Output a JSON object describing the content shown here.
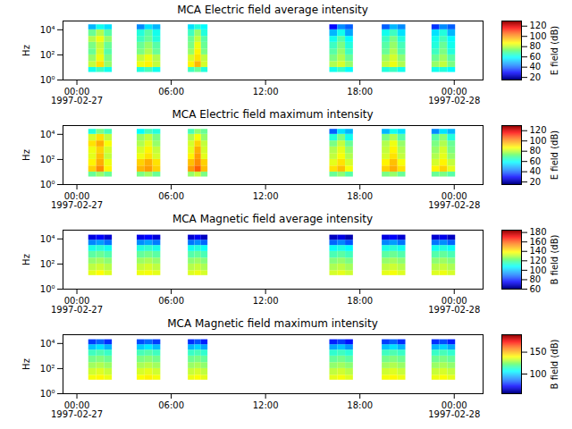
{
  "chart_data": [
    {
      "type": "heatmap",
      "title": "MCA  Electric field average intensity",
      "ylabel": "Hz",
      "log": "y",
      "xlim": [
        "1997-02-26T23:07",
        "1997-02-28T01:50"
      ],
      "xticks": [
        {
          "value": "1997-02-27T00:00",
          "label": "00:00\n1997-02-27"
        },
        {
          "value": "1997-02-27T06:00",
          "label": "06:00"
        },
        {
          "value": "1997-02-27T12:00",
          "label": "12:00"
        },
        {
          "value": "1997-02-27T18:00",
          "label": "18:00"
        },
        {
          "value": "1997-02-28T00:00",
          "label": "00:00\n1997-02-28"
        }
      ],
      "ylim": [
        1,
        50000
      ],
      "yticks": [
        {
          "value": 1,
          "label": "10⁰"
        },
        {
          "value": 100,
          "label": "10²"
        },
        {
          "value": 10000,
          "label": "10⁴"
        }
      ],
      "time_bins": [
        [
          "1997-02-27T00:45",
          "1997-02-27T01:15"
        ],
        [
          "1997-02-27T01:15",
          "1997-02-27T01:45"
        ],
        [
          "1997-02-27T01:45",
          "1997-02-27T02:15"
        ],
        [
          "1997-02-27T03:50",
          "1997-02-27T04:20"
        ],
        [
          "1997-02-27T04:20",
          "1997-02-27T04:50"
        ],
        [
          "1997-02-27T04:50",
          "1997-02-27T05:20"
        ],
        [
          "1997-02-27T07:05",
          "1997-02-27T07:30"
        ],
        [
          "1997-02-27T07:30",
          "1997-02-27T07:55"
        ],
        [
          "1997-02-27T07:55",
          "1997-02-27T08:20"
        ],
        [
          "1997-02-27T16:05",
          "1997-02-27T16:35"
        ],
        [
          "1997-02-27T16:35",
          "1997-02-27T17:05"
        ],
        [
          "1997-02-27T17:05",
          "1997-02-27T17:35"
        ],
        [
          "1997-02-27T19:25",
          "1997-02-27T19:55"
        ],
        [
          "1997-02-27T19:55",
          "1997-02-27T20:25"
        ],
        [
          "1997-02-27T20:25",
          "1997-02-27T20:55"
        ],
        [
          "1997-02-27T22:35",
          "1997-02-27T23:05"
        ],
        [
          "1997-02-27T23:05",
          "1997-02-27T23:35"
        ],
        [
          "1997-02-27T23:35",
          "1997-02-28T00:05"
        ]
      ],
      "freq_bins": [
        4,
        10,
        30,
        100,
        300,
        1000,
        3000,
        10000,
        25000
      ],
      "z": [
        [
          60,
          65,
          60,
          62,
          66,
          60,
          65,
          70,
          62,
          60,
          64,
          58,
          62,
          65,
          60,
          60,
          62,
          58
        ],
        [
          80,
          90,
          75,
          85,
          88,
          80,
          88,
          95,
          82,
          78,
          82,
          75,
          80,
          85,
          78,
          75,
          80,
          72
        ],
        [
          75,
          85,
          72,
          80,
          85,
          78,
          82,
          90,
          80,
          72,
          78,
          70,
          76,
          82,
          74,
          70,
          76,
          68
        ],
        [
          70,
          82,
          68,
          72,
          78,
          70,
          75,
          88,
          72,
          68,
          75,
          65,
          70,
          78,
          68,
          65,
          72,
          62
        ],
        [
          72,
          80,
          70,
          70,
          75,
          68,
          72,
          85,
          70,
          65,
          72,
          62,
          68,
          75,
          66,
          62,
          70,
          60
        ],
        [
          78,
          85,
          75,
          65,
          70,
          62,
          70,
          80,
          68,
          60,
          68,
          58,
          65,
          72,
          62,
          60,
          66,
          58
        ],
        [
          70,
          78,
          68,
          62,
          68,
          60,
          65,
          75,
          62,
          50,
          60,
          48,
          60,
          65,
          55,
          55,
          62,
          50
        ],
        [
          50,
          60,
          55,
          45,
          55,
          50,
          55,
          62,
          58,
          30,
          45,
          40,
          40,
          50,
          45,
          35,
          45,
          40
        ]
      ],
      "colorbar": {
        "label": "E field (dB)",
        "range": [
          15,
          130
        ],
        "ticks": [
          20,
          40,
          60,
          80,
          100,
          120
        ]
      }
    },
    {
      "type": "heatmap",
      "title": "MCA  Electric field maximum intensity",
      "ylabel": "Hz",
      "log": "y",
      "xlim": [
        "1997-02-26T23:07",
        "1997-02-28T01:50"
      ],
      "xticks": [
        {
          "value": "1997-02-27T00:00",
          "label": "00:00\n1997-02-27"
        },
        {
          "value": "1997-02-27T06:00",
          "label": "06:00"
        },
        {
          "value": "1997-02-27T12:00",
          "label": "12:00"
        },
        {
          "value": "1997-02-27T18:00",
          "label": "18:00"
        },
        {
          "value": "1997-02-28T00:00",
          "label": "00:00\n1997-02-28"
        }
      ],
      "ylim": [
        1,
        50000
      ],
      "yticks": [
        {
          "value": 1,
          "label": "10⁰"
        },
        {
          "value": 100,
          "label": "10²"
        },
        {
          "value": 10000,
          "label": "10⁴"
        }
      ],
      "time_bins": [
        [
          "1997-02-27T00:45",
          "1997-02-27T01:15"
        ],
        [
          "1997-02-27T01:15",
          "1997-02-27T01:45"
        ],
        [
          "1997-02-27T01:45",
          "1997-02-27T02:15"
        ],
        [
          "1997-02-27T03:50",
          "1997-02-27T04:20"
        ],
        [
          "1997-02-27T04:20",
          "1997-02-27T04:50"
        ],
        [
          "1997-02-27T04:50",
          "1997-02-27T05:20"
        ],
        [
          "1997-02-27T07:05",
          "1997-02-27T07:30"
        ],
        [
          "1997-02-27T07:30",
          "1997-02-27T07:55"
        ],
        [
          "1997-02-27T07:55",
          "1997-02-27T08:20"
        ],
        [
          "1997-02-27T16:05",
          "1997-02-27T16:35"
        ],
        [
          "1997-02-27T16:35",
          "1997-02-27T17:05"
        ],
        [
          "1997-02-27T17:05",
          "1997-02-27T17:35"
        ],
        [
          "1997-02-27T19:25",
          "1997-02-27T19:55"
        ],
        [
          "1997-02-27T19:55",
          "1997-02-27T20:25"
        ],
        [
          "1997-02-27T20:25",
          "1997-02-27T20:55"
        ],
        [
          "1997-02-27T22:35",
          "1997-02-27T23:05"
        ],
        [
          "1997-02-27T23:05",
          "1997-02-27T23:35"
        ],
        [
          "1997-02-27T23:35",
          "1997-02-28T00:05"
        ]
      ],
      "freq_bins": [
        4,
        10,
        30,
        100,
        300,
        1000,
        3000,
        10000,
        25000
      ],
      "z": [
        [
          70,
          75,
          70,
          72,
          76,
          70,
          75,
          80,
          72,
          70,
          74,
          68,
          72,
          75,
          70,
          70,
          72,
          68
        ],
        [
          92,
          100,
          88,
          95,
          98,
          92,
          98,
          105,
          94,
          90,
          94,
          86,
          92,
          96,
          90,
          88,
          92,
          84
        ],
        [
          88,
          96,
          85,
          92,
          96,
          90,
          94,
          100,
          92,
          84,
          90,
          82,
          88,
          94,
          86,
          82,
          88,
          80
        ],
        [
          84,
          94,
          80,
          85,
          90,
          82,
          88,
          98,
          84,
          80,
          86,
          78,
          82,
          90,
          80,
          78,
          84,
          75
        ],
        [
          85,
          92,
          82,
          82,
          88,
          80,
          84,
          96,
          82,
          78,
          84,
          75,
          80,
          88,
          78,
          75,
          82,
          72
        ],
        [
          90,
          96,
          86,
          78,
          84,
          75,
          82,
          92,
          80,
          72,
          80,
          70,
          78,
          85,
          75,
          72,
          78,
          70
        ],
        [
          82,
          90,
          80,
          75,
          80,
          72,
          78,
          86,
          75,
          62,
          72,
          60,
          72,
          78,
          68,
          68,
          74,
          62
        ],
        [
          62,
          72,
          66,
          58,
          66,
          62,
          66,
          74,
          70,
          40,
          55,
          50,
          50,
          60,
          55,
          45,
          55,
          50
        ]
      ],
      "colorbar": {
        "label": "E field (dB)",
        "range": [
          15,
          130
        ],
        "ticks": [
          20,
          40,
          60,
          80,
          100,
          120
        ]
      }
    },
    {
      "type": "heatmap",
      "title": "MCA  Magnetic field average intensity",
      "ylabel": "Hz",
      "log": "y",
      "xlim": [
        "1997-02-26T23:07",
        "1997-02-28T01:50"
      ],
      "xticks": [
        {
          "value": "1997-02-27T00:00",
          "label": "00:00\n1997-02-27"
        },
        {
          "value": "1997-02-27T06:00",
          "label": "06:00"
        },
        {
          "value": "1997-02-27T12:00",
          "label": "12:00"
        },
        {
          "value": "1997-02-27T18:00",
          "label": "18:00"
        },
        {
          "value": "1997-02-28T00:00",
          "label": "00:00\n1997-02-28"
        }
      ],
      "ylim": [
        1,
        50000
      ],
      "yticks": [
        {
          "value": 1,
          "label": "10⁰"
        },
        {
          "value": 100,
          "label": "10²"
        },
        {
          "value": 10000,
          "label": "10⁴"
        }
      ],
      "time_bins": [
        [
          "1997-02-27T00:45",
          "1997-02-27T01:15"
        ],
        [
          "1997-02-27T01:15",
          "1997-02-27T01:45"
        ],
        [
          "1997-02-27T01:45",
          "1997-02-27T02:15"
        ],
        [
          "1997-02-27T03:50",
          "1997-02-27T04:20"
        ],
        [
          "1997-02-27T04:20",
          "1997-02-27T04:50"
        ],
        [
          "1997-02-27T04:50",
          "1997-02-27T05:20"
        ],
        [
          "1997-02-27T07:05",
          "1997-02-27T07:30"
        ],
        [
          "1997-02-27T07:30",
          "1997-02-27T07:55"
        ],
        [
          "1997-02-27T07:55",
          "1997-02-27T08:20"
        ],
        [
          "1997-02-27T16:05",
          "1997-02-27T16:35"
        ],
        [
          "1997-02-27T16:35",
          "1997-02-27T17:05"
        ],
        [
          "1997-02-27T17:05",
          "1997-02-27T17:35"
        ],
        [
          "1997-02-27T19:25",
          "1997-02-27T19:55"
        ],
        [
          "1997-02-27T19:55",
          "1997-02-27T20:25"
        ],
        [
          "1997-02-27T20:25",
          "1997-02-27T20:55"
        ],
        [
          "1997-02-27T22:35",
          "1997-02-27T23:05"
        ],
        [
          "1997-02-27T23:05",
          "1997-02-27T23:35"
        ],
        [
          "1997-02-27T23:35",
          "1997-02-28T00:05"
        ]
      ],
      "freq_bins": [
        12,
        30,
        100,
        300,
        1000,
        3000,
        8000,
        20000
      ],
      "z": [
        [
          135,
          138,
          134,
          136,
          137,
          135,
          134,
          136,
          133,
          133,
          135,
          132,
          135,
          137,
          134,
          134,
          136,
          133
        ],
        [
          130,
          132,
          129,
          131,
          133,
          130,
          129,
          131,
          128,
          128,
          130,
          127,
          130,
          132,
          129,
          129,
          131,
          128
        ],
        [
          125,
          127,
          124,
          126,
          128,
          125,
          124,
          126,
          123,
          123,
          125,
          122,
          125,
          127,
          124,
          124,
          126,
          123
        ],
        [
          118,
          120,
          117,
          119,
          121,
          118,
          117,
          119,
          116,
          116,
          118,
          115,
          118,
          120,
          117,
          117,
          119,
          116
        ],
        [
          110,
          112,
          109,
          111,
          113,
          110,
          109,
          111,
          108,
          108,
          110,
          107,
          110,
          112,
          109,
          109,
          111,
          108
        ],
        [
          92,
          95,
          90,
          93,
          96,
          91,
          90,
          93,
          88,
          88,
          92,
          86,
          92,
          95,
          90,
          90,
          93,
          88
        ],
        [
          72,
          75,
          70,
          73,
          76,
          71,
          70,
          74,
          68,
          68,
          72,
          66,
          72,
          75,
          70,
          70,
          73,
          68
        ]
      ],
      "colorbar": {
        "label": "B field (dB)",
        "range": [
          60,
          185
        ],
        "ticks": [
          60,
          80,
          100,
          120,
          140,
          160,
          180
        ]
      }
    },
    {
      "type": "heatmap",
      "title": "MCA  Magnetic field maximum intensity",
      "ylabel": "Hz",
      "log": "y",
      "xlim": [
        "1997-02-26T23:07",
        "1997-02-28T01:50"
      ],
      "xticks": [
        {
          "value": "1997-02-27T00:00",
          "label": "00:00\n1997-02-27"
        },
        {
          "value": "1997-02-27T06:00",
          "label": "06:00"
        },
        {
          "value": "1997-02-27T12:00",
          "label": "12:00"
        },
        {
          "value": "1997-02-27T18:00",
          "label": "18:00"
        },
        {
          "value": "1997-02-28T00:00",
          "label": "00:00\n1997-02-28"
        }
      ],
      "ylim": [
        1,
        50000
      ],
      "yticks": [
        {
          "value": 1,
          "label": "10⁰"
        },
        {
          "value": 100,
          "label": "10²"
        },
        {
          "value": 10000,
          "label": "10⁴"
        }
      ],
      "time_bins": [
        [
          "1997-02-27T00:45",
          "1997-02-27T01:15"
        ],
        [
          "1997-02-27T01:15",
          "1997-02-27T01:45"
        ],
        [
          "1997-02-27T01:45",
          "1997-02-27T02:15"
        ],
        [
          "1997-02-27T03:50",
          "1997-02-27T04:20"
        ],
        [
          "1997-02-27T04:20",
          "1997-02-27T04:50"
        ],
        [
          "1997-02-27T04:50",
          "1997-02-27T05:20"
        ],
        [
          "1997-02-27T07:05",
          "1997-02-27T07:30"
        ],
        [
          "1997-02-27T07:30",
          "1997-02-27T07:55"
        ],
        [
          "1997-02-27T07:55",
          "1997-02-27T08:20"
        ],
        [
          "1997-02-27T16:05",
          "1997-02-27T16:35"
        ],
        [
          "1997-02-27T16:35",
          "1997-02-27T17:05"
        ],
        [
          "1997-02-27T17:05",
          "1997-02-27T17:35"
        ],
        [
          "1997-02-27T19:25",
          "1997-02-27T19:55"
        ],
        [
          "1997-02-27T19:55",
          "1997-02-27T20:25"
        ],
        [
          "1997-02-27T20:25",
          "1997-02-27T20:55"
        ],
        [
          "1997-02-27T22:35",
          "1997-02-27T23:05"
        ],
        [
          "1997-02-27T23:05",
          "1997-02-27T23:35"
        ],
        [
          "1997-02-27T23:35",
          "1997-02-28T00:05"
        ]
      ],
      "freq_bins": [
        12,
        30,
        100,
        300,
        1000,
        3000,
        8000,
        20000
      ],
      "z": [
        [
          138,
          140,
          137,
          139,
          141,
          138,
          137,
          139,
          136,
          136,
          138,
          135,
          138,
          140,
          137,
          137,
          139,
          136
        ],
        [
          133,
          135,
          132,
          134,
          136,
          133,
          132,
          134,
          131,
          131,
          133,
          130,
          133,
          135,
          132,
          132,
          134,
          131
        ],
        [
          127,
          129,
          126,
          128,
          130,
          127,
          126,
          128,
          125,
          125,
          127,
          124,
          127,
          129,
          126,
          126,
          128,
          125
        ],
        [
          121,
          123,
          120,
          122,
          124,
          121,
          120,
          122,
          119,
          119,
          121,
          118,
          121,
          123,
          120,
          120,
          122,
          119
        ],
        [
          114,
          116,
          113,
          115,
          117,
          114,
          113,
          115,
          112,
          112,
          114,
          111,
          114,
          116,
          113,
          113,
          115,
          112
        ],
        [
          98,
          102,
          96,
          99,
          103,
          97,
          96,
          100,
          94,
          94,
          98,
          92,
          98,
          102,
          96,
          96,
          100,
          94
        ],
        [
          80,
          85,
          78,
          82,
          86,
          80,
          78,
          83,
          76,
          76,
          80,
          74,
          80,
          85,
          78,
          78,
          82,
          76
        ]
      ],
      "colorbar": {
        "label": "B field (dB)",
        "range": [
          55,
          190
        ],
        "ticks": [
          100,
          150
        ]
      }
    }
  ]
}
